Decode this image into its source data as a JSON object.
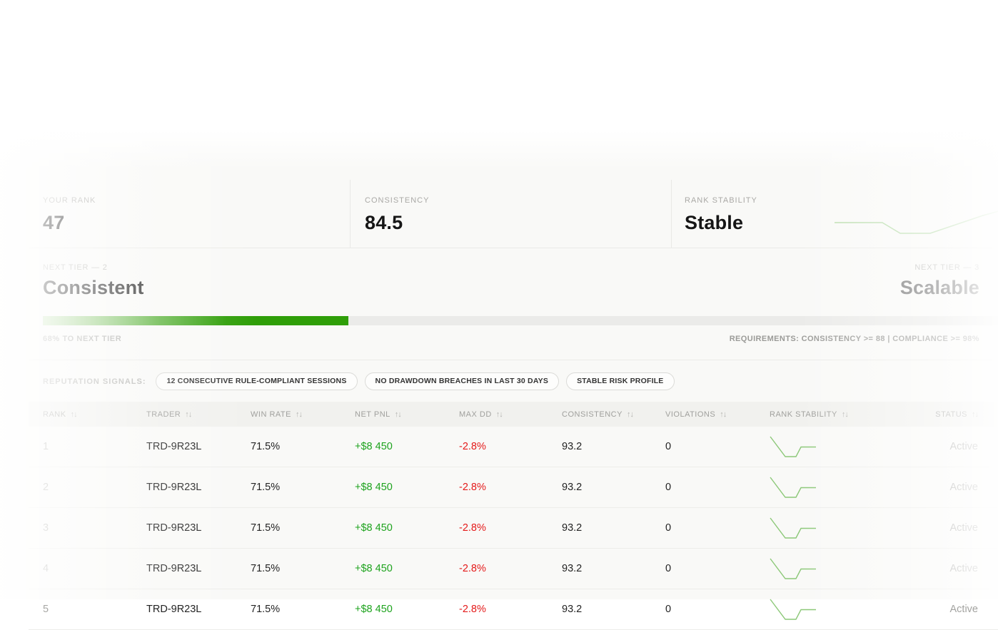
{
  "stats": {
    "rank": {
      "label": "YOUR RANK",
      "value": "47"
    },
    "consistency": {
      "label": "CONSISTENCY",
      "value": "84.5"
    },
    "stability": {
      "label": "RANK STABILITY",
      "value": "Stable",
      "trend": "flat-dip-recovering"
    }
  },
  "tier": {
    "current": {
      "label": "NEXT TIER — 2",
      "name": "Consistent"
    },
    "next": {
      "label": "NEXT TIER — 3",
      "name": "Scalable"
    },
    "progress_percent": 32,
    "progress_caption": "68% TO NEXT TIER",
    "requirements": "REQUIREMENTS: CONSISTENCY >= 88 | COMPLIANCE >= 98%"
  },
  "signals": {
    "label": "REPUTATION SIGNALS:",
    "chips": [
      "12 CONSECUTIVE RULE-COMPLIANT SESSIONS",
      "NO DRAWDOWN BREACHES IN LAST 30 DAYS",
      "STABLE RISK PROFILE"
    ]
  },
  "table": {
    "sort_icon": "↑↓",
    "columns": [
      "RANK",
      "TRADER",
      "WIN RATE",
      "NET PNL",
      "MAX DD",
      "CONSISTENCY",
      "VIOLATIONS",
      "RANK STABILITY",
      "STATUS"
    ],
    "rows": [
      {
        "rank": "1",
        "trader": "TRD-9R23L",
        "win_rate": "71.5%",
        "net_pnl": "+$8 450",
        "max_dd": "-2.8%",
        "consistency": "93.2",
        "violations": "0",
        "stability_trend": "dip-recover",
        "status": "Active"
      },
      {
        "rank": "2",
        "trader": "TRD-9R23L",
        "win_rate": "71.5%",
        "net_pnl": "+$8 450",
        "max_dd": "-2.8%",
        "consistency": "93.2",
        "violations": "0",
        "stability_trend": "dip-recover",
        "status": "Active"
      },
      {
        "rank": "3",
        "trader": "TRD-9R23L",
        "win_rate": "71.5%",
        "net_pnl": "+$8 450",
        "max_dd": "-2.8%",
        "consistency": "93.2",
        "violations": "0",
        "stability_trend": "dip-recover",
        "status": "Active"
      },
      {
        "rank": "4",
        "trader": "TRD-9R23L",
        "win_rate": "71.5%",
        "net_pnl": "+$8 450",
        "max_dd": "-2.8%",
        "consistency": "93.2",
        "violations": "0",
        "stability_trend": "dip-recover",
        "status": "Active"
      },
      {
        "rank": "5",
        "trader": "TRD-9R23L",
        "win_rate": "71.5%",
        "net_pnl": "+$8 450",
        "max_dd": "-2.8%",
        "consistency": "93.2",
        "violations": "0",
        "stability_trend": "dip-recover",
        "status": "Active"
      }
    ]
  },
  "colors": {
    "progress_green": "#2f9e08",
    "pnl_green": "#1ea31e",
    "loss_red": "#e41a1a",
    "spark_green": "#8cc878",
    "stat_spark_green": "#b7dcaa"
  }
}
